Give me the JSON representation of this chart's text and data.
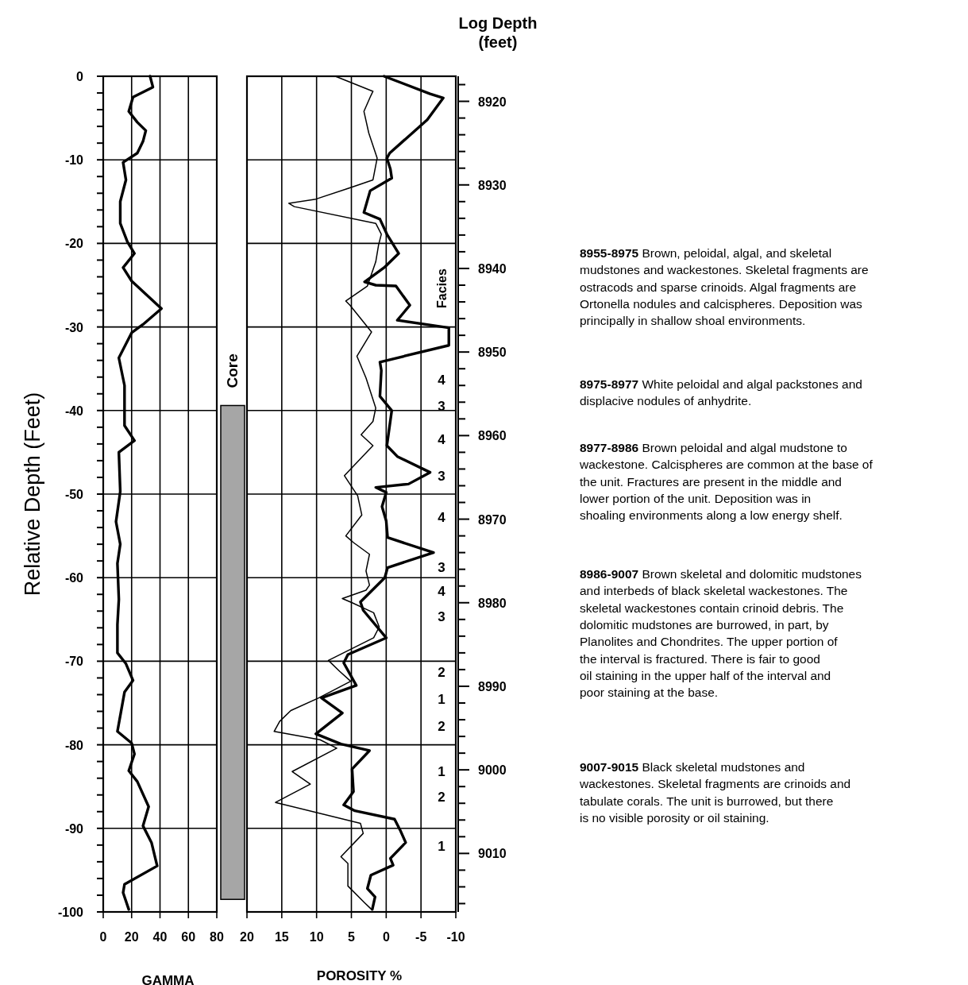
{
  "chart_data": [
    {
      "type": "line",
      "orientation": "horizontal",
      "xlabel": "GAMMA",
      "ylabel": "Relative Depth (Feet)",
      "xlim": [
        0,
        80
      ],
      "xticks": [
        0,
        20,
        40,
        60,
        80
      ],
      "ylim": [
        -100,
        0
      ],
      "yticks": [
        0,
        {
          "value": -2,
          "label": null
        },
        {
          "value": -4,
          "label": null
        },
        {
          "value": -6,
          "label": null
        },
        {
          "value": -8,
          "label": null
        },
        -10,
        {
          "value": -12,
          "label": null
        },
        {
          "value": -14,
          "label": null
        },
        {
          "value": -16,
          "label": null
        },
        {
          "value": -18,
          "label": null
        },
        -20,
        {
          "value": -22,
          "label": null
        },
        {
          "value": -24,
          "label": null
        },
        {
          "value": -26,
          "label": null
        },
        {
          "value": -28,
          "label": null
        },
        -30,
        {
          "value": -32,
          "label": null
        },
        {
          "value": -34,
          "label": null
        },
        {
          "value": -36,
          "label": null
        },
        {
          "value": -38,
          "label": null
        },
        -40,
        {
          "value": -42,
          "label": null
        },
        {
          "value": -44,
          "label": null
        },
        {
          "value": -46,
          "label": null
        },
        {
          "value": -48,
          "label": null
        },
        -50,
        {
          "value": -52,
          "label": null
        },
        {
          "value": -54,
          "label": null
        },
        {
          "value": -56,
          "label": null
        },
        {
          "value": -58,
          "label": null
        },
        -60,
        {
          "value": -62,
          "label": null
        },
        {
          "value": -64,
          "label": null
        },
        {
          "value": -66,
          "label": null
        },
        {
          "value": -68,
          "label": null
        },
        -70,
        {
          "value": -72,
          "label": null
        },
        {
          "value": -74,
          "label": null
        },
        {
          "value": -76,
          "label": null
        },
        {
          "value": -78,
          "label": null
        },
        -80,
        {
          "value": -82,
          "label": null
        },
        {
          "value": -84,
          "label": null
        },
        {
          "value": -86,
          "label": null
        },
        {
          "value": -88,
          "label": null
        },
        -90,
        {
          "value": -92,
          "label": null
        },
        {
          "value": -94,
          "label": null
        },
        {
          "value": -96,
          "label": null
        },
        {
          "value": -98,
          "label": null
        },
        -100
      ],
      "grid": true,
      "series": [
        {
          "color": "#000000",
          "x": [
            0,
            -1.3,
            -2.5,
            -4.2,
            -5.5,
            -6.5,
            -7.8,
            -9.2,
            -10.3,
            -12.4,
            -15,
            -17.6,
            -19.8,
            -21.2,
            -22.9,
            -24.5,
            -27.8,
            -29.7,
            -30.7,
            -33.7,
            -37,
            -41.8,
            -43.6,
            -45,
            -49.7,
            -53.3,
            -56,
            -58.3,
            -62.6,
            -65.6,
            -69,
            -70.3,
            -72.3,
            -73.7,
            -78.4,
            -79.8,
            -81.1,
            -83.1,
            -84.4,
            -87.4,
            -89.7,
            -91.7,
            -94.5,
            -96.7,
            -97.7,
            -99.7
          ],
          "values": [
            33,
            35,
            21,
            18,
            24,
            30,
            28,
            24,
            14,
            16,
            12,
            12,
            17,
            22,
            14,
            20,
            41,
            28,
            20,
            11,
            15,
            15,
            22,
            11,
            12,
            9,
            12,
            10,
            11,
            10,
            10,
            16,
            21,
            15,
            10,
            20,
            22,
            18,
            24,
            32,
            28,
            34,
            38,
            15,
            14,
            18
          ]
        }
      ]
    },
    {
      "type": "bar",
      "categories": [
        null
      ],
      "base": [
        -98.5
      ],
      "values": [
        59.1
      ],
      "color": "#a6a6a6",
      "ylim": [
        -100,
        0
      ],
      "tick_labels": false,
      "annotations": [
        "Core"
      ]
    },
    {
      "type": "line",
      "orientation": "horizontal",
      "xlabel": "POROSITY %",
      "y2label": "Log Depth (feet)",
      "xlim": [
        20,
        -10
      ],
      "xticks": [
        20,
        15,
        10,
        5,
        0,
        -5,
        -10
      ],
      "ylim": [
        -100,
        0
      ],
      "yticks": [
        0,
        -10,
        -20,
        -30,
        -40,
        -50,
        -60,
        -70,
        -80,
        -90,
        -100
      ],
      "tick_labels": "x",
      "grid": true,
      "y2lim": [
        9017,
        8917
      ],
      "y2ticks": [
        {
          "value": 8918,
          "label": null
        },
        {
          "value": 8920,
          "label": "8920"
        },
        {
          "value": 8922,
          "label": null
        },
        {
          "value": 8924,
          "label": null
        },
        {
          "value": 8926,
          "label": null
        },
        {
          "value": 8928,
          "label": null
        },
        {
          "value": 8930,
          "label": "8930"
        },
        {
          "value": 8932,
          "label": null
        },
        {
          "value": 8934,
          "label": null
        },
        {
          "value": 8936,
          "label": null
        },
        {
          "value": 8938,
          "label": null
        },
        {
          "value": 8940,
          "label": "8940"
        },
        {
          "value": 8942,
          "label": null
        },
        {
          "value": 8944,
          "label": null
        },
        {
          "value": 8946,
          "label": null
        },
        {
          "value": 8948,
          "label": null
        },
        {
          "value": 8950,
          "label": "8950"
        },
        {
          "value": 8952,
          "label": null
        },
        {
          "value": 8954,
          "label": null
        },
        {
          "value": 8956,
          "label": null
        },
        {
          "value": 8958,
          "label": null
        },
        {
          "value": 8960,
          "label": "8960"
        },
        {
          "value": 8962,
          "label": null
        },
        {
          "value": 8964,
          "label": null
        },
        {
          "value": 8966,
          "label": null
        },
        {
          "value": 8968,
          "label": null
        },
        {
          "value": 8970,
          "label": "8970"
        },
        {
          "value": 8972,
          "label": null
        },
        {
          "value": 8974,
          "label": null
        },
        {
          "value": 8976,
          "label": null
        },
        {
          "value": 8978,
          "label": null
        },
        {
          "value": 8980,
          "label": "8980"
        },
        {
          "value": 8982,
          "label": null
        },
        {
          "value": 8984,
          "label": null
        },
        {
          "value": 8986,
          "label": null
        },
        {
          "value": 8988,
          "label": null
        },
        {
          "value": 8990,
          "label": "8990"
        },
        {
          "value": 8992,
          "label": null
        },
        {
          "value": 8994,
          "label": null
        },
        {
          "value": 8996,
          "label": null
        },
        {
          "value": 8998,
          "label": null
        },
        {
          "value": 9000,
          "label": "9000"
        },
        {
          "value": 9002,
          "label": null
        },
        {
          "value": 9004,
          "label": null
        },
        {
          "value": 9006,
          "label": null
        },
        {
          "value": 9008,
          "label": null
        },
        {
          "value": 9010,
          "label": "9010"
        },
        {
          "value": 9012,
          "label": null
        },
        {
          "value": 9014,
          "label": null
        },
        {
          "value": 9016,
          "label": null
        }
      ],
      "series": [
        {
          "color": "#000000",
          "x": [
            0,
            -1.8,
            -2.5,
            -4.2,
            -6.8,
            -9.8,
            -12.4,
            -13.4,
            -14.7,
            -15.2,
            -15.6,
            -17.6,
            -18.9,
            -20.2,
            -22.2,
            -25.1,
            -26.9,
            -27.4,
            -30.6,
            -33.5,
            -36.1,
            -39.7,
            -41.3,
            -42.9,
            -44.2,
            -45.5,
            -47.8,
            -50.2,
            -52.5,
            -55,
            -55.8,
            -57.2,
            -59.2,
            -60.9,
            -61.5,
            -62.5,
            -63,
            -64.2,
            -65.9,
            -67.2,
            -69.9,
            -71.2,
            -72.4,
            -74.4,
            -75.9,
            -77.2,
            -78.4,
            -79.4,
            -80.4,
            -83.2,
            -84.7,
            -86.9,
            -89.4,
            -90.6,
            -93.4,
            -94.2,
            -96.9,
            -98.9,
            -99.7
          ],
          "values": [
            7.3,
            1.9,
            2.3,
            3.2,
            2.5,
            1.3,
            1.9,
            5.4,
            10.1,
            14,
            13.2,
            1.5,
            0.7,
            1.1,
            1.5,
            2.7,
            5.8,
            5.2,
            2.1,
            4.2,
            2.9,
            1.5,
            1.9,
            3.6,
            1.9,
            3.4,
            6,
            4.1,
            3.5,
            5.8,
            4.7,
            2.4,
            2.9,
            2.4,
            2.9,
            6.3,
            4.9,
            1.8,
            1,
            1.8,
            8.3,
            6.7,
            5.1,
            9.7,
            13.7,
            15.3,
            16.1,
            9.5,
            7.1,
            13.5,
            10.9,
            15.9,
            3.7,
            3.3,
            6.5,
            5.5,
            5.5,
            3.1,
            2.1
          ]
        },
        {
          "color": "#000000",
          "x": [
            0,
            -2.1,
            -2.6,
            -5.2,
            -9.2,
            -9.8,
            -11.1,
            -12.2,
            -13.7,
            -16.3,
            -17.1,
            -18.9,
            -21.2,
            -22.9,
            -24.6,
            -25,
            -25.1,
            -27.4,
            -28.4,
            -29.2,
            -30.1,
            -32.2,
            -34.2,
            -35.2,
            -38.3,
            -40,
            -44.2,
            -45.5,
            -47.4,
            -48.8,
            -49.2,
            -49.8,
            -51.5,
            -53.2,
            -55.2,
            -57,
            -58.8,
            -60,
            -62.9,
            -63.9,
            -67.2,
            -69.2,
            -70.2,
            -72.9,
            -74.4,
            -76.2,
            -78.7,
            -79.9,
            -80.7,
            -82.9,
            -85.6,
            -87.2,
            -87.9,
            -88.9,
            -90.2,
            -91.7,
            -93.6,
            -94.4,
            -95.6,
            -97.2,
            -98.2,
            -99.7
          ],
          "values": [
            0.3,
            -6.3,
            -8.2,
            -5.9,
            -0.5,
            -0.1,
            -0.6,
            -0.8,
            2.3,
            3.2,
            0.9,
            -0.1,
            -1.8,
            0.3,
            3.1,
            1.5,
            -1.4,
            -3.4,
            -2.4,
            -1.6,
            -9,
            -9,
            0.9,
            0.7,
            0.9,
            -0.8,
            -0.1,
            -1.6,
            -6.3,
            -3.2,
            1.5,
            0,
            0.6,
            0,
            -0.2,
            -6.8,
            -0.2,
            0.2,
            3.7,
            3.3,
            0,
            5.5,
            6.1,
            4.3,
            9.3,
            6.3,
            10.1,
            6.5,
            2.4,
            4.9,
            4.7,
            6.1,
            4.5,
            -1.2,
            -2,
            -2.8,
            -0.6,
            -1,
            2.2,
            2.7,
            1.6,
            2
          ]
        }
      ],
      "annotations": [
        "Facies",
        "4",
        "3",
        "4",
        "3",
        "4",
        "3",
        "4",
        "3",
        "2",
        "1",
        "2",
        "1",
        "2",
        "1",
        "8955-8975 Brown, peloidal, algal, and skeletal mudstones and wackestones. Skeletal fragments are ostracods and sparse crinoids. Algal fragments are Ortonella nodules and calcispheres. Deposition was principally in shallow shoal environments.",
        "8975-8977 White peloidal and algal packstones and displacive nodules of anhydrite.",
        "8977-8986 Brown peloidal and algal mudstone to wackestone. Calcispheres are common at the base of the unit. Fractures are present in the middle and lower portion of the unit. Deposition was in shoaling environments along a low energy shelf.",
        "8986-9007 Brown skeletal and dolomitic mudstones and interbeds of black skeletal wackestones. The skeletal wackestones contain crinoid debris. The dolomitic mudstones are burrowed, in part, by Planolites and Chondrites. The upper portion of the interval is fractured. There is fair to good oil staining in the upper half of the interval and poor staining at the base.",
        "9007-9015 Black skeletal mudstones and wackestones. Skeletal fragments are crinoids and tabulate corals. The unit is burrowed, but there is no visible porosity or oil staining."
      ]
    }
  ]
}
